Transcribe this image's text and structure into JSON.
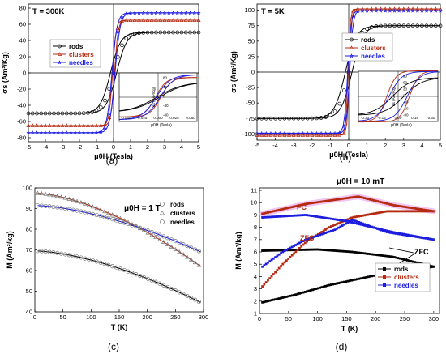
{
  "panels_labels": [
    "(a)",
    "(b)",
    "(c)",
    "(d)"
  ],
  "colors": {
    "rods": "#000000",
    "clusters": "#b52a10",
    "needles": "#1d1de0",
    "fc_highlight": "#f2c6f2"
  },
  "chart_data": [
    {
      "id": "a",
      "type": "line",
      "title": "T = 300K",
      "xlabel": "μ0H (Tesla)",
      "ylabel": "σs (Am²/Kg)",
      "xlim": [
        -5,
        5
      ],
      "ylim": [
        -85,
        85
      ],
      "xticks": [
        -5,
        -4,
        -3,
        -2,
        -1,
        0,
        1,
        2,
        3,
        4,
        5
      ],
      "yticks": [
        -80,
        -60,
        -40,
        -20,
        0,
        20,
        40,
        60,
        80
      ],
      "legend": "center-left",
      "series": [
        {
          "name": "rods",
          "marker": "circle",
          "ms": 50,
          "hw": 0.6
        },
        {
          "name": "clusters",
          "marker": "triangle",
          "ms": 65,
          "hw": 0.2
        },
        {
          "name": "needles",
          "marker": "star",
          "ms": 74,
          "hw": 0.3
        }
      ],
      "inset": {
        "xlabel": "μ0H (Tesla)",
        "ylabel": "σs (Am²/Kg)",
        "xlim": [
          -0.06,
          0.06
        ],
        "xticks": [
          "-0.050",
          "-0.025",
          "0.000",
          "0.025",
          "0.050"
        ],
        "ylim": [
          -80,
          80
        ],
        "yticks": [
          "80",
          "40",
          "0",
          "-40",
          "-80"
        ],
        "curves": [
          {
            "name": "rods",
            "slope": 25,
            "sat": 50,
            "shift": 0.002
          },
          {
            "name": "clusters",
            "slope": 60,
            "sat": 65,
            "shift": 0.004
          },
          {
            "name": "needles",
            "slope": 45,
            "sat": 74,
            "shift": 0.003
          }
        ]
      }
    },
    {
      "id": "b",
      "type": "line",
      "title": "T = 5K",
      "xlabel": "μ0H (Tesla)",
      "ylabel": "σs (Am²/Kg)",
      "xlim": [
        -5,
        5
      ],
      "ylim": [
        -110,
        110
      ],
      "xticks": [
        -5,
        -4,
        -3,
        -2,
        -1,
        0,
        1,
        2,
        3,
        4,
        5
      ],
      "yticks": [
        -100,
        -75,
        -50,
        -25,
        0,
        25,
        50,
        75,
        100
      ],
      "legend": "right",
      "series": [
        {
          "name": "rods",
          "marker": "circle",
          "ms": 75,
          "hw": 0.6
        },
        {
          "name": "clusters",
          "marker": "triangle",
          "ms": 102,
          "hw": 0.12
        },
        {
          "name": "needles",
          "marker": "star",
          "ms": 99,
          "hw": 0.18
        }
      ],
      "inset": {
        "xlabel": "μ0H (Tesla)",
        "ylabel": "σs (Am²/Kg)",
        "xlim": [
          -0.35,
          0.35
        ],
        "xticks": [
          "-0.30",
          "-0.15",
          "0.00",
          "0.15",
          "0.30"
        ],
        "ylim": [
          -100,
          100
        ],
        "yticks": [
          "90",
          "60",
          "30",
          "0",
          "-30",
          "-60",
          "-90"
        ],
        "curves": [
          {
            "name": "rods",
            "slope": 6,
            "sat": 75,
            "shift": 0.05
          },
          {
            "name": "clusters",
            "slope": 12,
            "sat": 102,
            "shift": 0.1
          },
          {
            "name": "needles",
            "slope": 9,
            "sat": 99,
            "shift": 0.08
          }
        ]
      }
    },
    {
      "id": "c",
      "type": "line",
      "title": "μ0H = 1 T",
      "xlabel": "T (K)",
      "ylabel": "M (Am²/kg)",
      "xlim": [
        0,
        300
      ],
      "ylim": [
        40,
        100
      ],
      "xticks": [
        0,
        50,
        100,
        150,
        200,
        250,
        300
      ],
      "yticks": [
        40,
        50,
        60,
        70,
        80,
        90,
        100
      ],
      "legend": "top-right",
      "series": [
        {
          "name": "rods",
          "marker": "circle",
          "m0": 69.5,
          "m_end": 44.5
        },
        {
          "name": "clusters",
          "marker": "triangle",
          "m0": 97.5,
          "m_end": 62
        },
        {
          "name": "needles",
          "marker": "circle",
          "m0": 91.5,
          "m_end": 69
        }
      ]
    },
    {
      "id": "d",
      "type": "line",
      "title": "μ0H = 10 mT",
      "xlabel": "T (K)",
      "ylabel": "M (Am²/kg)",
      "xlim": [
        0,
        310
      ],
      "ylim": [
        1,
        11.2
      ],
      "xticks": [
        0,
        50,
        100,
        150,
        200,
        250,
        300
      ],
      "yticks": [
        1,
        2,
        3,
        4,
        5,
        6,
        7,
        8,
        9,
        10,
        11
      ],
      "legend": "bottom-right",
      "annotations": [
        "FC",
        "ZFC",
        "ZFC"
      ],
      "series": [
        {
          "name": "rods",
          "marker": "square",
          "fc": [
            [
              5,
              6.1
            ],
            [
              100,
              6.2
            ],
            [
              160,
              6.0
            ],
            [
              230,
              5.6
            ],
            [
              300,
              4.8
            ]
          ],
          "zfc": [
            [
              5,
              1.9
            ],
            [
              60,
              2.5
            ],
            [
              120,
              3.3
            ],
            [
              200,
              4.1
            ],
            [
              300,
              4.8
            ]
          ]
        },
        {
          "name": "clusters",
          "marker": "square",
          "fc": [
            [
              5,
              9.1
            ],
            [
              80,
              9.9
            ],
            [
              140,
              10.3
            ],
            [
              170,
              10.5
            ],
            [
              230,
              9.8
            ],
            [
              300,
              9.3
            ]
          ],
          "zfc": [
            [
              5,
              3.2
            ],
            [
              40,
              5.0
            ],
            [
              80,
              6.8
            ],
            [
              120,
              8.0
            ],
            [
              160,
              8.8
            ],
            [
              220,
              9.3
            ],
            [
              300,
              9.3
            ]
          ]
        },
        {
          "name": "needles",
          "marker": "square",
          "fc": [
            [
              5,
              8.8
            ],
            [
              80,
              9.0
            ],
            [
              150,
              8.5
            ],
            [
              230,
              7.6
            ],
            [
              300,
              7.0
            ]
          ],
          "zfc": [
            [
              5,
              4.8
            ],
            [
              40,
              6.0
            ],
            [
              80,
              7.0
            ],
            [
              130,
              7.8
            ],
            [
              160,
              8.6
            ],
            [
              220,
              7.6
            ],
            [
              300,
              7.0
            ]
          ]
        }
      ]
    }
  ]
}
